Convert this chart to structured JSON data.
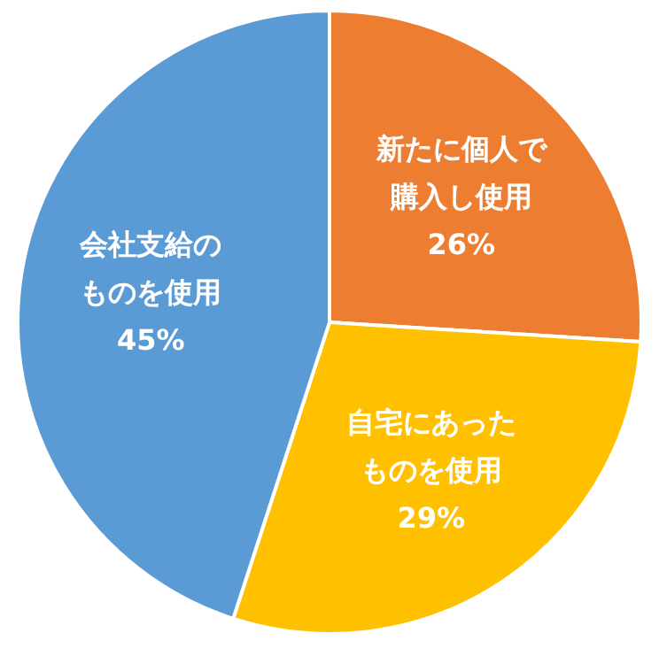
{
  "chart_data": {
    "type": "pie",
    "categories": [
      "新たに個人で購入し使用",
      "自宅にあったものを使用",
      "会社支給のものを使用"
    ],
    "values": [
      26,
      29,
      45
    ],
    "colors": [
      "#ed7d31",
      "#ffc000",
      "#5b9bd5"
    ],
    "value_labels": [
      "26%",
      "29%",
      "45%"
    ]
  }
}
